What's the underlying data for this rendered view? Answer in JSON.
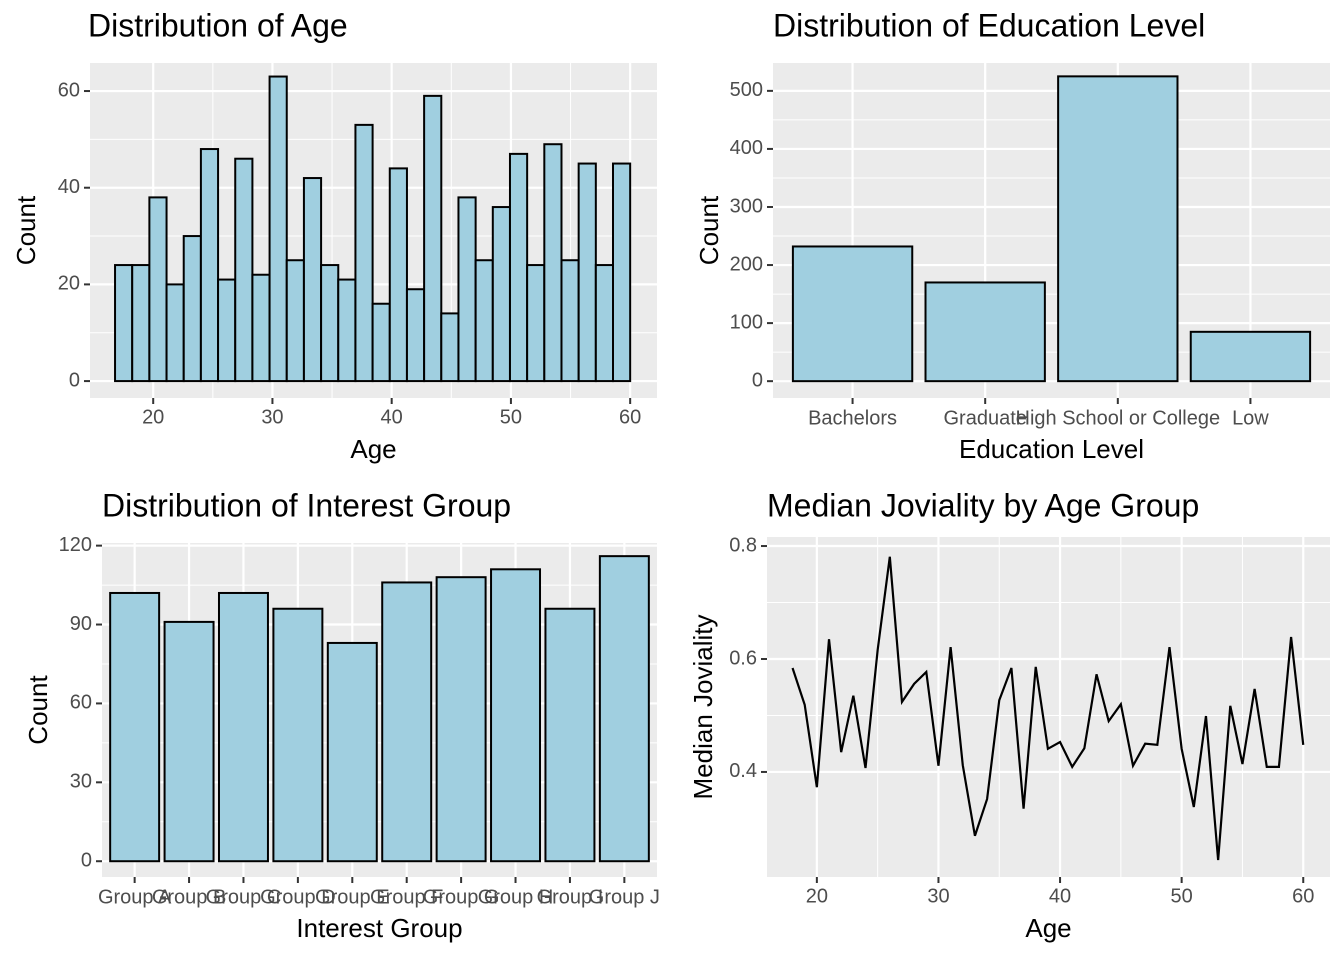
{
  "chart_data": [
    {
      "type": "histogram",
      "title": "Distribution of Age",
      "x_label": "Age",
      "y_label": "Count",
      "bins": [
        16.8,
        18.24,
        19.68,
        21.12,
        22.56,
        24.0,
        25.44,
        26.88,
        28.32,
        29.76,
        31.2,
        32.64,
        34.08,
        35.52,
        36.96,
        38.4,
        39.84,
        41.28,
        42.72,
        44.16,
        45.6,
        47.04,
        48.48,
        49.92,
        51.36,
        52.8,
        54.24,
        55.68,
        57.12,
        58.56,
        60.0
      ],
      "values": [
        24,
        24,
        38,
        20,
        30,
        48,
        21,
        46,
        22,
        63,
        25,
        42,
        24,
        21,
        53,
        16,
        44,
        19,
        59,
        14,
        38,
        25,
        36,
        47,
        24,
        49,
        25,
        45,
        24,
        45
      ],
      "color": "#a0cfe0",
      "xlim": [
        14.7,
        62.25
      ],
      "ylim": [
        -3.5,
        65.8
      ],
      "xticks": [
        20,
        30,
        40,
        50,
        60
      ],
      "yticks": [
        0,
        20,
        40,
        60
      ],
      "grid": true
    },
    {
      "type": "bar",
      "title": "Distribution of Education Level",
      "x_label": "Education Level",
      "y_label": "Count",
      "categories": [
        "Bachelors",
        "Graduate",
        "High School or College",
        "Low"
      ],
      "values": [
        232,
        170,
        525,
        85
      ],
      "color": "#a0cfe0",
      "ylim": [
        -29,
        548
      ],
      "yticks": [
        0,
        100,
        200,
        300,
        400,
        500
      ],
      "grid": true
    },
    {
      "type": "bar",
      "title": "Distribution of Interest Group",
      "x_label": "Interest Group",
      "y_label": "Count",
      "categories": [
        "Group A",
        "Group B",
        "Group C",
        "Group D",
        "Group E",
        "Group F",
        "Group G",
        "Group H",
        "Group I",
        "Group J"
      ],
      "values": [
        102,
        91,
        102,
        96,
        83,
        106,
        108,
        111,
        96,
        116
      ],
      "color": "#a0cfe0",
      "ylim": [
        -6,
        121
      ],
      "yticks": [
        0,
        30,
        60,
        90,
        120
      ],
      "grid": true
    },
    {
      "type": "line",
      "title": "Median Joviality by Age Group",
      "x_label": "Age",
      "y_label": "Median Joviality",
      "x": [
        18,
        19,
        20,
        21,
        22,
        23,
        24,
        25,
        26,
        27,
        28,
        29,
        30,
        31,
        32,
        33,
        34,
        35,
        36,
        37,
        38,
        39,
        40,
        41,
        42,
        43,
        44,
        45,
        46,
        47,
        48,
        49,
        50,
        51,
        52,
        53,
        54,
        55,
        56,
        57,
        58,
        59,
        60
      ],
      "values": [
        0.584,
        0.519,
        0.373,
        0.635,
        0.435,
        0.535,
        0.407,
        0.616,
        0.781,
        0.524,
        0.556,
        0.577,
        0.411,
        0.621,
        0.412,
        0.287,
        0.352,
        0.527,
        0.584,
        0.335,
        0.586,
        0.441,
        0.453,
        0.409,
        0.442,
        0.573,
        0.49,
        0.52,
        0.411,
        0.45,
        0.448,
        0.621,
        0.441,
        0.338,
        0.499,
        0.244,
        0.517,
        0.414,
        0.547,
        0.409,
        0.409,
        0.639,
        0.448
      ],
      "color": "#000000",
      "xlim": [
        15.9,
        62.2
      ],
      "ylim": [
        0.214,
        0.816
      ],
      "xticks": [
        20,
        30,
        40,
        50,
        60
      ],
      "yticks": [
        0.4,
        0.6,
        0.8
      ],
      "grid": true
    }
  ]
}
